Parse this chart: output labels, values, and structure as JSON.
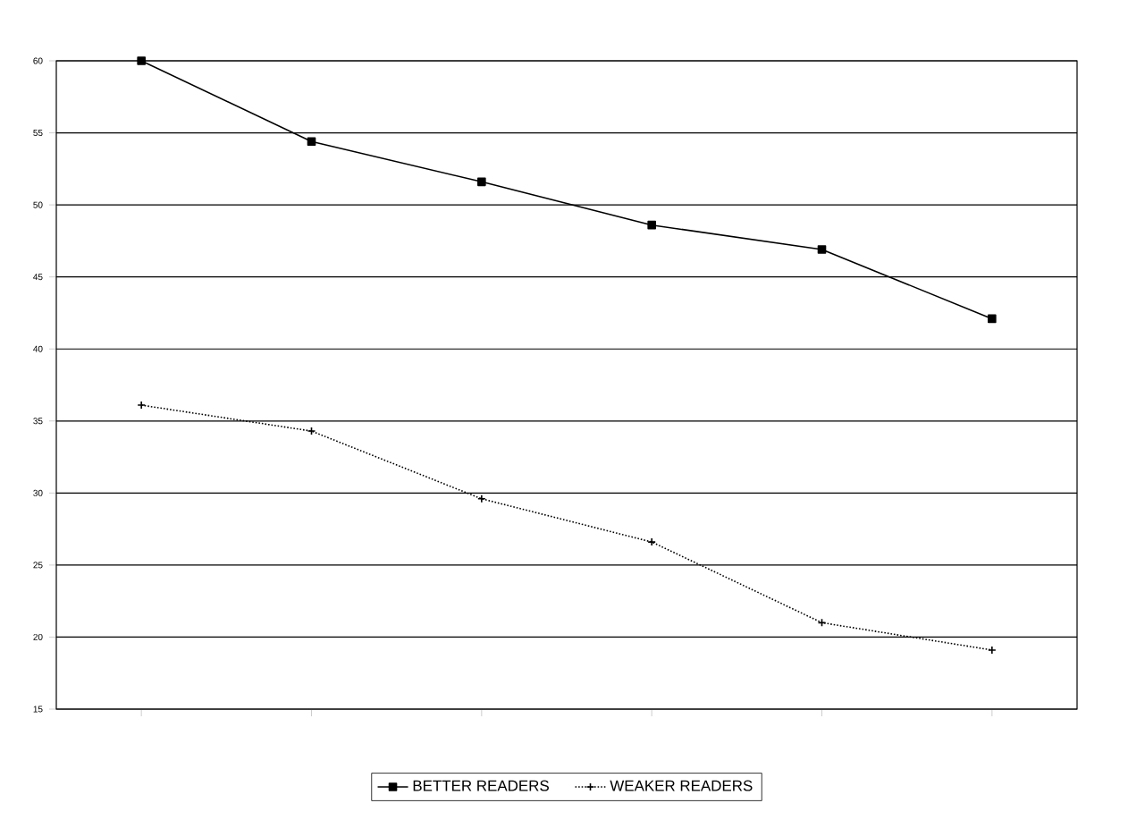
{
  "chart_data": {
    "type": "line",
    "categories": [
      null,
      null,
      null,
      null,
      null,
      null
    ],
    "series": [
      {
        "name": "BETTER READERS",
        "color": "#000000",
        "marker": "square",
        "line_style": "solid",
        "values": [
          60,
          54.4,
          51.6,
          48.6,
          46.9,
          42.1
        ]
      },
      {
        "name": "WEAKER READERS",
        "color": "#000000",
        "marker": "cross",
        "line_style": "dotted",
        "values": [
          36.1,
          34.3,
          29.6,
          26.6,
          21.0,
          19.1
        ]
      }
    ],
    "ylim": [
      15,
      60
    ],
    "yticks": [
      15,
      20,
      25,
      30,
      35,
      40,
      45,
      50,
      55,
      60
    ],
    "grid": "y",
    "legend": "bottom"
  }
}
